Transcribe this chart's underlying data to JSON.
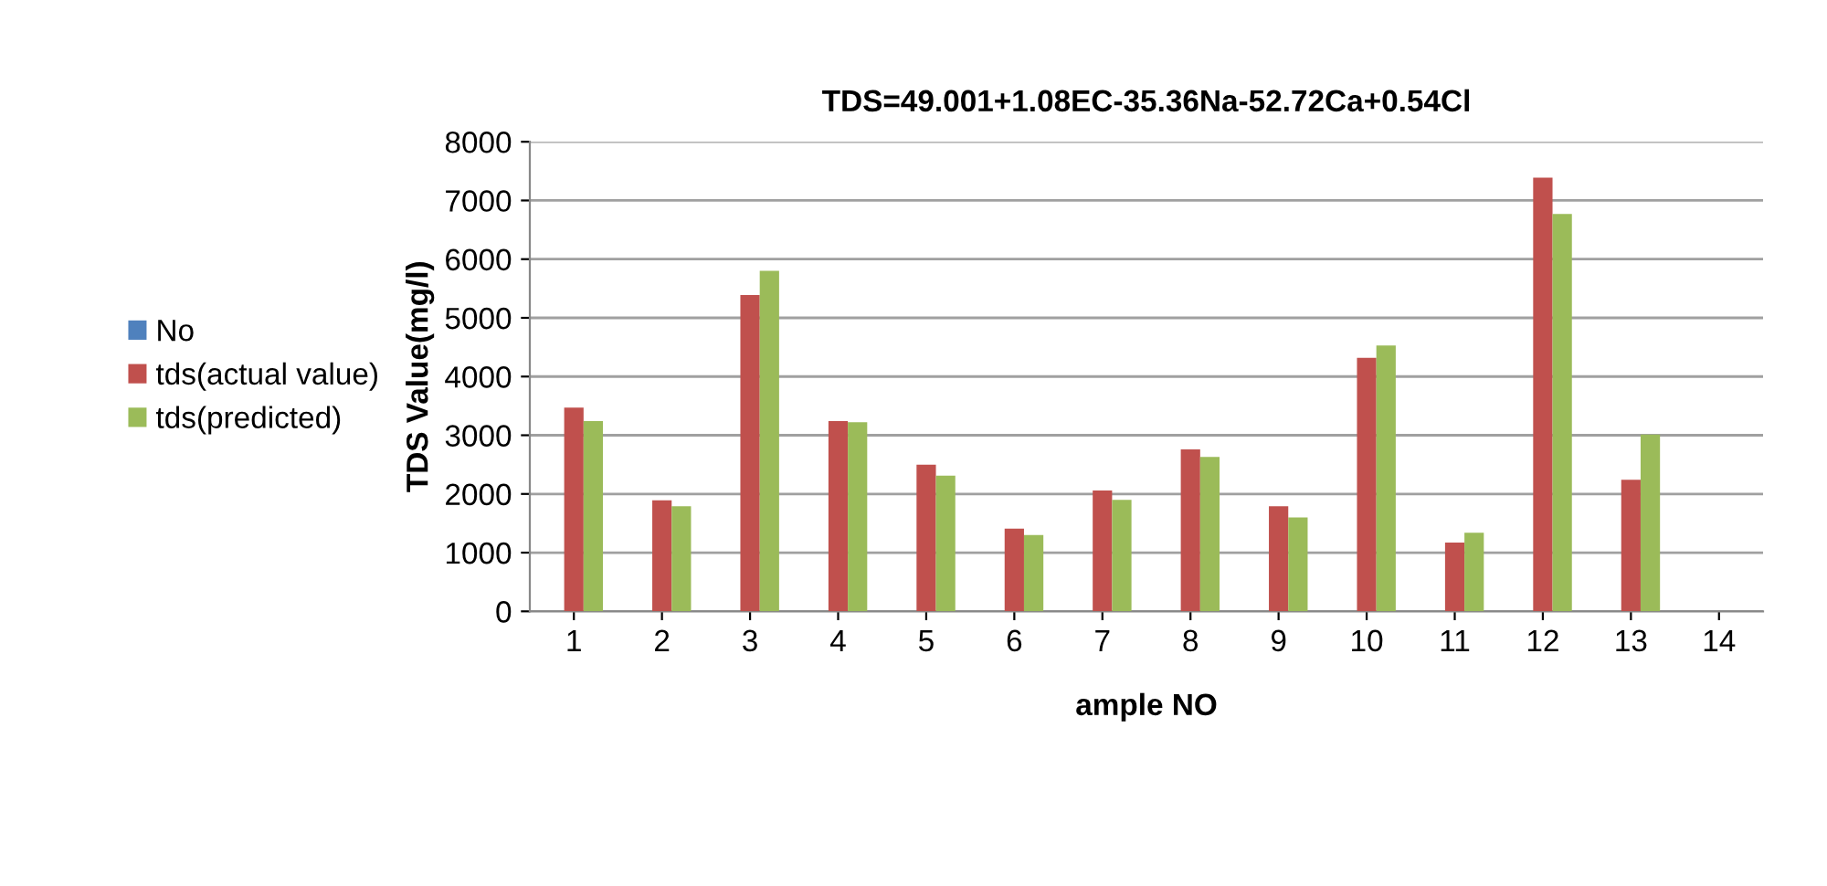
{
  "chart_data": {
    "type": "bar",
    "title": "TDS=49.001+1.08EC-35.36Na-52.72Ca+0.54Cl",
    "xlabel": "ample NO",
    "ylabel": "TDS Value(mg/l)",
    "categories": [
      "1",
      "2",
      "3",
      "4",
      "5",
      "6",
      "7",
      "8",
      "9",
      "10",
      "11",
      "12",
      "13",
      "14"
    ],
    "series": [
      {
        "name": "No",
        "color": "#4f81bd",
        "values": [
          null,
          null,
          null,
          null,
          null,
          null,
          null,
          null,
          null,
          null,
          null,
          null,
          null,
          null
        ]
      },
      {
        "name": "tds(actual value)",
        "color": "#c0504d",
        "values": [
          3470,
          1890,
          5390,
          3240,
          2500,
          1410,
          2060,
          2760,
          1790,
          4320,
          1170,
          7390,
          2240,
          null
        ]
      },
      {
        "name": "tds(predicted)",
        "color": "#9bbb59",
        "values": [
          3240,
          1790,
          5800,
          3220,
          2310,
          1300,
          1900,
          2630,
          1600,
          4530,
          1340,
          6770,
          3010,
          null
        ]
      }
    ],
    "ylim": [
      0,
      8000
    ],
    "yticks": [
      0,
      1000,
      2000,
      3000,
      4000,
      5000,
      6000,
      7000,
      8000
    ],
    "grid": "y",
    "legend": "left"
  }
}
